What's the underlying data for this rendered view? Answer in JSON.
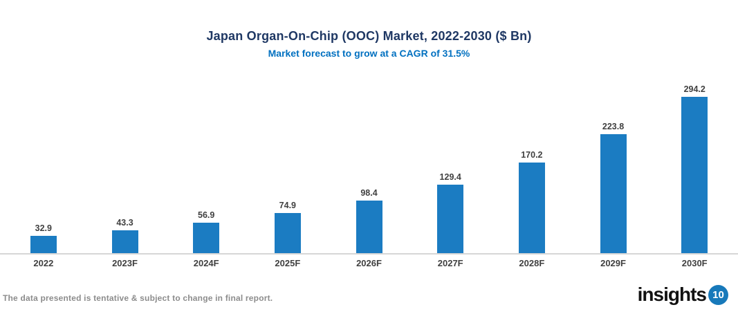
{
  "header": {
    "title": "Japan Organ-On-Chip (OOC) Market, 2022-2030 ($ Bn)",
    "subtitle": "Market forecast to grow at a CAGR of 31.5%"
  },
  "chart_data": {
    "type": "bar",
    "title": "Japan Organ-On-Chip (OOC) Market, 2022-2030 ($ Bn)",
    "subtitle": "Market forecast to grow at a CAGR of 31.5%",
    "categories": [
      "2022",
      "2023F",
      "2024F",
      "2025F",
      "2026F",
      "2027F",
      "2028F",
      "2029F",
      "2030F"
    ],
    "values": [
      32.9,
      43.3,
      56.9,
      74.9,
      98.4,
      129.4,
      170.2,
      223.8,
      294.2
    ],
    "xlabel": "",
    "ylabel": "",
    "ylim": [
      0,
      320
    ],
    "grid": false,
    "legend": "none",
    "data_labels": true,
    "bar_color": "#1B7CC2"
  },
  "colors": {
    "title": "#1F3864",
    "subtitle": "#0070C0",
    "bar": "#1B7CC2",
    "axis_line": "#D6D6D6",
    "tick_label": "#404040",
    "note": "#8C8C8C",
    "logo_badge": "#1779BA"
  },
  "footer": {
    "note": "The data presented is tentative & subject to change in final report.",
    "logo": {
      "text": "insights",
      "badge": "10"
    }
  }
}
